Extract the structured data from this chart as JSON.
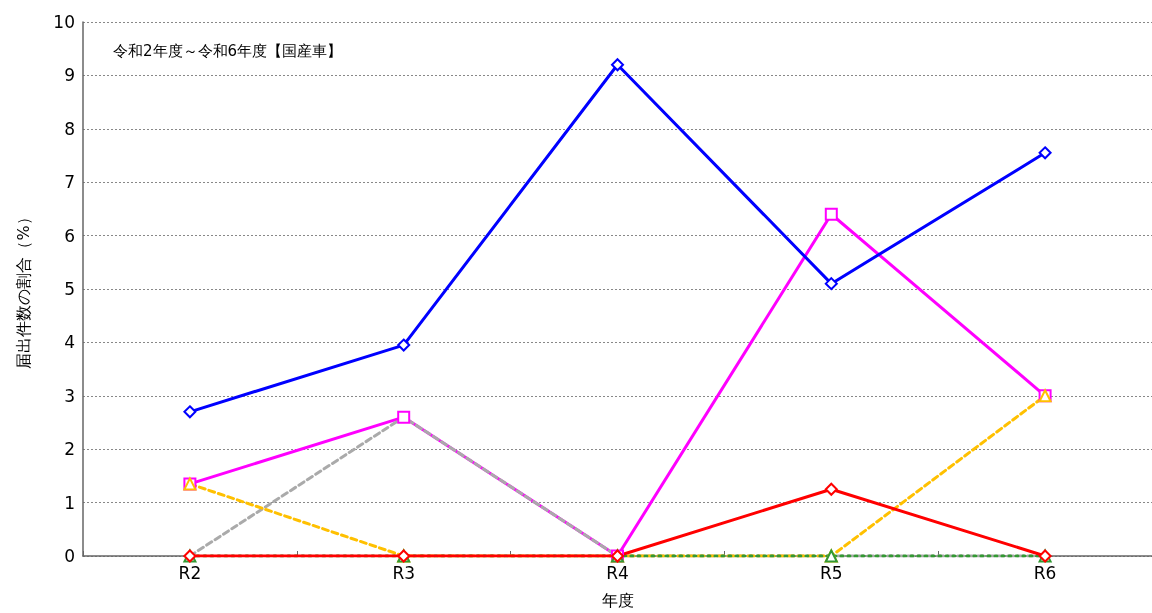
{
  "chart_data": {
    "type": "line",
    "title": "令和2年度～令和6年度【国産車】",
    "xlabel": "年度",
    "ylabel": "届出件数の割合（%）",
    "categories": [
      "R2",
      "R3",
      "R4",
      "R5",
      "R6"
    ],
    "series": [
      {
        "color": "#ff00ff",
        "values": [
          1.35,
          2.6,
          0,
          6.4,
          3.0
        ],
        "marker": "square",
        "line_style": "solid"
      },
      {
        "color": "#aaaaaa",
        "values": [
          0,
          2.6,
          0,
          0,
          0
        ],
        "marker": "none",
        "line_style": "dashed"
      },
      {
        "color": "#ffc000",
        "values": [
          1.35,
          0,
          0,
          0,
          3.0
        ],
        "marker": "triangle",
        "line_style": "dashed"
      },
      {
        "color": "#339933",
        "values": [
          0,
          0,
          0,
          0,
          0
        ],
        "marker": "triangle",
        "line_style": "dotted"
      },
      {
        "color": "#ff0000",
        "values": [
          0,
          0,
          0,
          1.25,
          0
        ],
        "marker": "diamond",
        "line_style": "solid"
      },
      {
        "color": "#0000ff",
        "values": [
          2.7,
          3.95,
          9.2,
          5.1,
          7.55
        ],
        "marker": "diamond",
        "line_style": "solid"
      }
    ],
    "ylim": [
      0,
      10
    ],
    "yticks": [
      0,
      1,
      2,
      3,
      4,
      5,
      6,
      7,
      8,
      9,
      10
    ],
    "grid": "y"
  }
}
